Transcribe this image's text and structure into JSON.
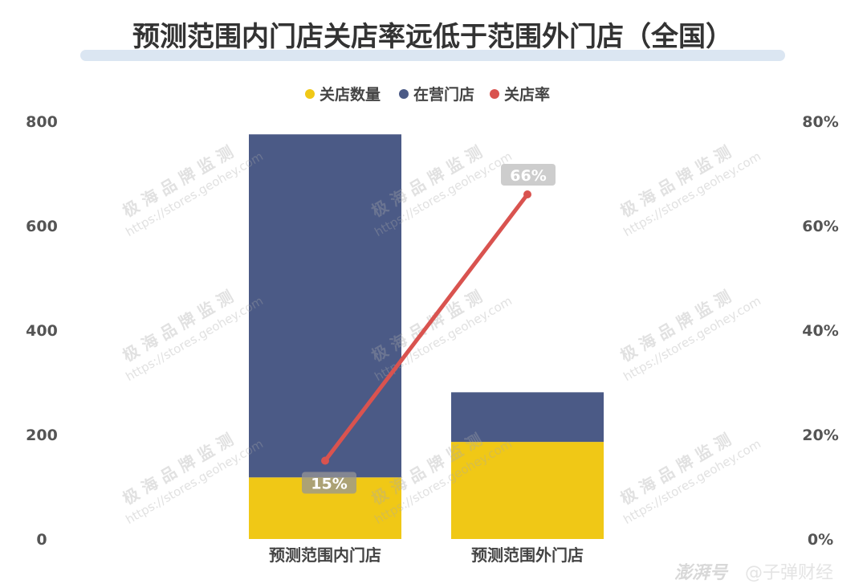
{
  "chart_data": {
    "type": "bar",
    "title": "预测范围内门店关店率远低于范围外门店（全国）",
    "categories": [
      "预测范围内门店",
      "预测范围外门店"
    ],
    "series": [
      {
        "name": "关店数量",
        "kind": "bar",
        "axis": "left",
        "color": "#f0c816",
        "values": [
          118,
          186
        ]
      },
      {
        "name": "在营门店",
        "kind": "bar",
        "axis": "left",
        "color": "#4b5a86",
        "values": [
          657,
          95
        ]
      },
      {
        "name": "关店率",
        "kind": "line",
        "axis": "right",
        "color": "#d9534f",
        "values": [
          0.15,
          0.66
        ]
      }
    ],
    "data_labels": [
      "15%",
      "66%"
    ],
    "y_left": {
      "min": 0,
      "max": 800,
      "ticks": [
        "0",
        "200",
        "400",
        "600",
        "800"
      ]
    },
    "y_right": {
      "min": 0,
      "max": 0.8,
      "ticks": [
        "0%",
        "20%",
        "40%",
        "60%",
        "80%"
      ]
    },
    "stacked": true,
    "legend_position": "top-center",
    "grid": false
  },
  "watermark": {
    "text": "极 海 品 牌 监 测",
    "url": "https://stores.geohey.com"
  },
  "footer": {
    "logo": "澎湃号",
    "source": "@子弹财经"
  }
}
